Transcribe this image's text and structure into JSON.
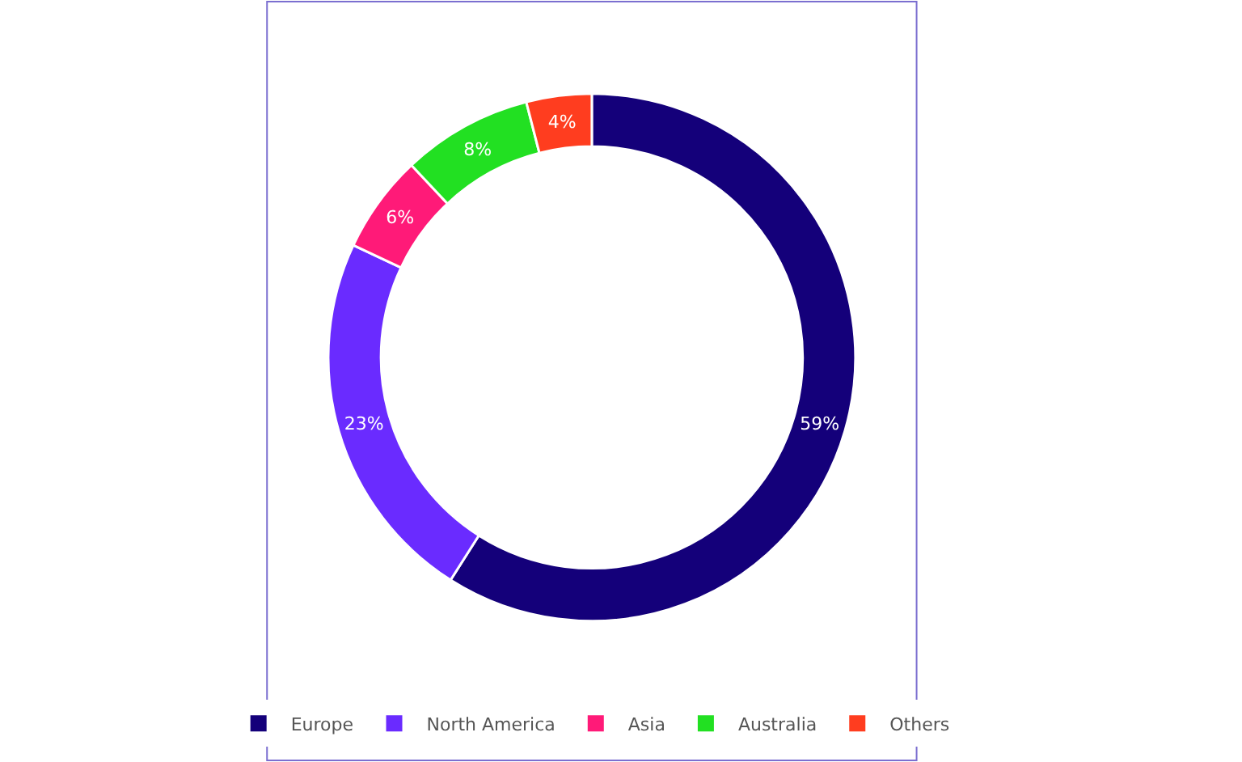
{
  "chart_data": {
    "type": "donut",
    "categories": [
      "Europe",
      "North America",
      "Asia",
      "Australia",
      "Others"
    ],
    "values": [
      59,
      23,
      6,
      8,
      4
    ],
    "colors": [
      "#14007a",
      "#6a2bff",
      "#ff1a78",
      "#22e022",
      "#ff3d1f"
    ],
    "value_labels": [
      "59%",
      "23%",
      "6%",
      "8%",
      "4%"
    ],
    "legend": "bottom"
  }
}
